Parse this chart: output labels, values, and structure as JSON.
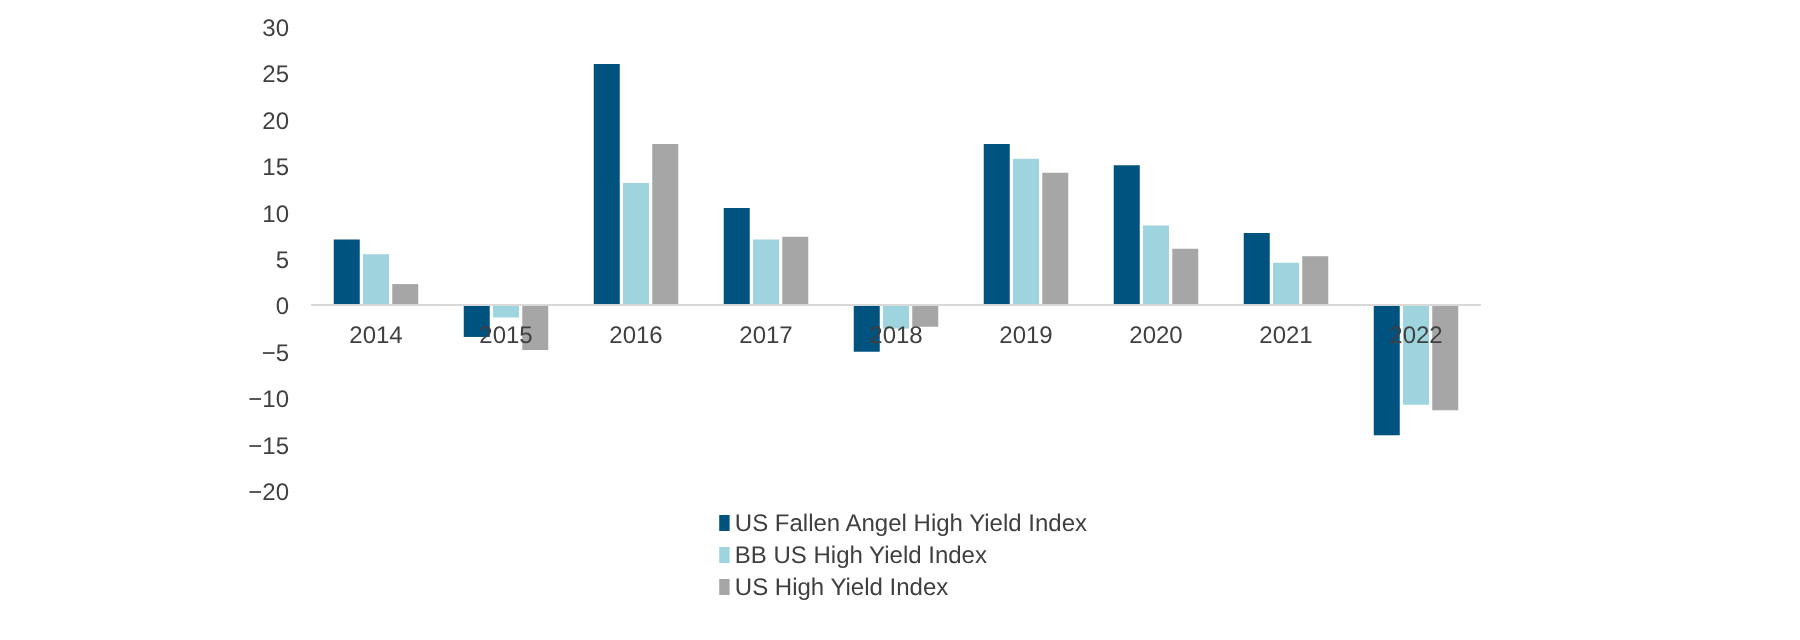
{
  "chart_data": {
    "type": "bar",
    "categories": [
      "2014",
      "2015",
      "2016",
      "2017",
      "2018",
      "2019",
      "2020",
      "2021",
      "2022"
    ],
    "series": [
      {
        "name": "US Fallen Angel High Yield Index",
        "color": "#00527f",
        "values": [
          7.1,
          -3.4,
          26.0,
          10.5,
          -5.0,
          17.4,
          15.1,
          7.8,
          -14.0
        ]
      },
      {
        "name": "BB US High Yield Index",
        "color": "#9dd4dd",
        "values": [
          5.5,
          -1.3,
          13.2,
          7.1,
          -2.5,
          15.8,
          8.6,
          4.6,
          -10.7
        ]
      },
      {
        "name": "US High Yield Index",
        "color": "#a6a6a6",
        "values": [
          2.3,
          -4.8,
          17.4,
          7.4,
          -2.3,
          14.3,
          6.1,
          5.3,
          -11.3
        ]
      }
    ],
    "ylim": [
      -20,
      30
    ],
    "yticks": [
      -20,
      -15,
      -10,
      -5,
      0,
      5,
      10,
      15,
      20,
      25,
      30
    ],
    "grid": false,
    "legend": "bottom"
  }
}
